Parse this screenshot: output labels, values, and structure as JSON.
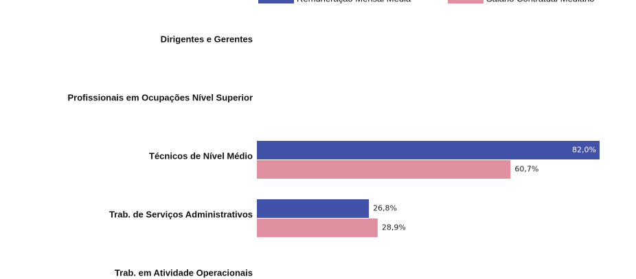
{
  "chart_data": {
    "type": "bar",
    "orientation": "horizontal",
    "categories": [
      "Dirigentes e Gerentes",
      "Profissionais em Ocupações Nível Superior",
      "Técnicos de Nível Médio",
      "Trab. de Serviços Administrativos",
      "Trab. em Atividade Operacionais"
    ],
    "series": [
      {
        "name": "Remuneração Mensal Média",
        "color": "#4252a8",
        "values": [
          null,
          null,
          82.0,
          26.8,
          null
        ],
        "value_labels": [
          null,
          null,
          "82,0%",
          "26,8%",
          null
        ]
      },
      {
        "name": "Salário Contratual Mediano",
        "color": "#e0909e",
        "values": [
          null,
          null,
          60.7,
          28.9,
          null
        ],
        "value_labels": [
          null,
          null,
          "60,7%",
          "28,9%",
          null
        ]
      }
    ]
  }
}
